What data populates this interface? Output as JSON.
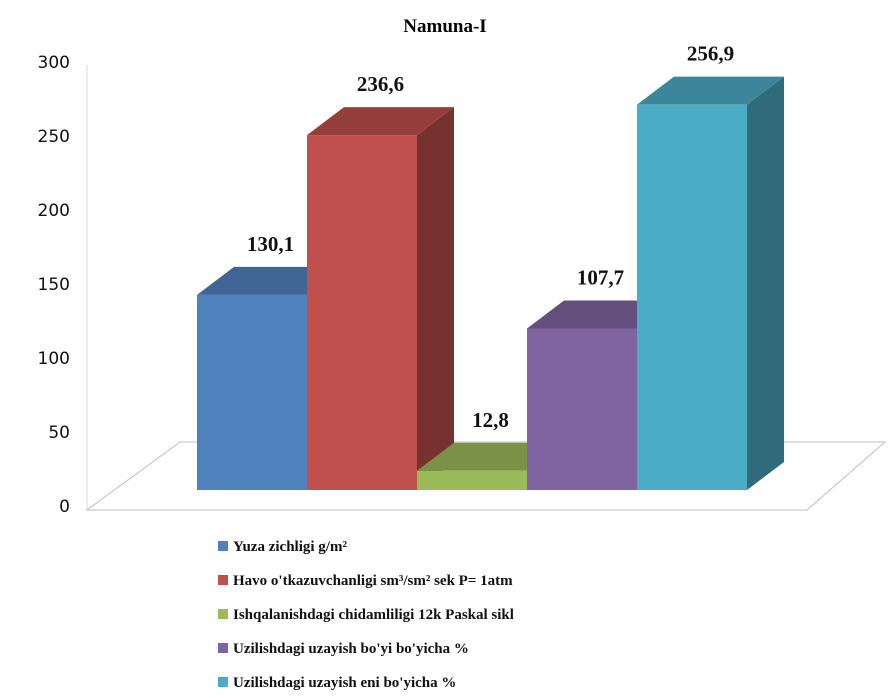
{
  "chart_data": {
    "type": "bar",
    "title": "Namuna-I",
    "style": "3d-clustered-column",
    "ylim": [
      0,
      300
    ],
    "yticks": [
      "0",
      "50",
      "100",
      "150",
      "200",
      "250",
      "300"
    ],
    "grid": false,
    "legend_position": "bottom",
    "series": [
      {
        "name": "Yuza zichligi g/m²",
        "value": 130.1,
        "label": "130,1",
        "color": "#4F81BD"
      },
      {
        "name": "Havo o'tkazuvchanligi sm³/sm² sek P= 1atm",
        "value": 236.6,
        "label": "236,6",
        "color": "#C0504D"
      },
      {
        "name": "Ishqalanishdagi chidamliligi 12k Paskal sikl",
        "value": 12.8,
        "label": "12,8",
        "color": "#9BBB59"
      },
      {
        "name": "Uzilishdagi uzayish bo'yi bo'yicha %",
        "value": 107.7,
        "label": "107,7",
        "color": "#8064A2"
      },
      {
        "name": "Uzilishdagi uzayish eni bo'yicha %",
        "value": 256.9,
        "label": "256,9",
        "color": "#4BACC6"
      }
    ]
  }
}
